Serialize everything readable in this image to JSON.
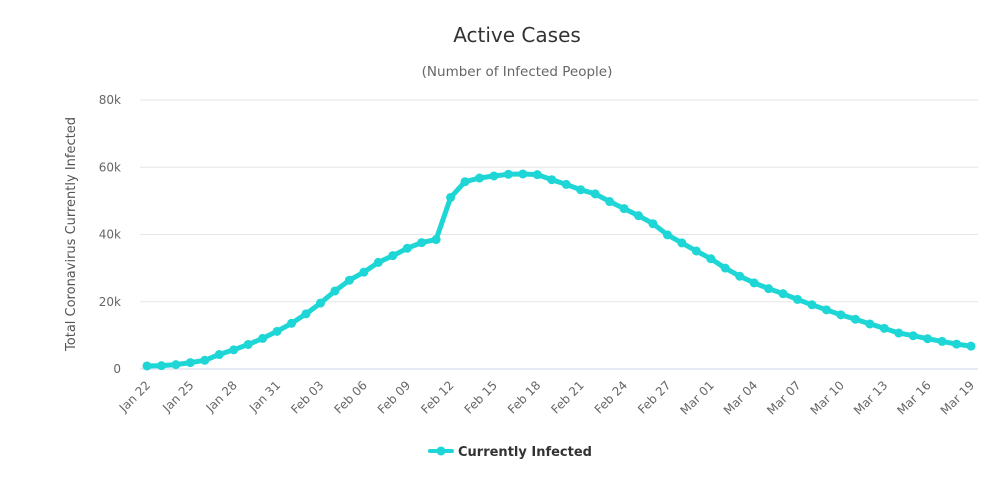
{
  "chart_data": {
    "type": "line",
    "title": "Active Cases",
    "subtitle": "(Number of Infected People)",
    "xlabel": "",
    "ylabel": "Total Coronavirus Currently Infected",
    "ylim": [
      0,
      80000
    ],
    "yticks": [
      0,
      20000,
      40000,
      60000,
      80000
    ],
    "ytick_labels": [
      "0",
      "20k",
      "40k",
      "60k",
      "80k"
    ],
    "grid": true,
    "legend_position": "bottom-center",
    "x": [
      "Jan 22",
      "Jan 23",
      "Jan 24",
      "Jan 25",
      "Jan 26",
      "Jan 27",
      "Jan 28",
      "Jan 29",
      "Jan 30",
      "Jan 31",
      "Feb 01",
      "Feb 02",
      "Feb 03",
      "Feb 04",
      "Feb 05",
      "Feb 06",
      "Feb 07",
      "Feb 08",
      "Feb 09",
      "Feb 10",
      "Feb 11",
      "Feb 12",
      "Feb 13",
      "Feb 14",
      "Feb 15",
      "Feb 16",
      "Feb 17",
      "Feb 18",
      "Feb 19",
      "Feb 20",
      "Feb 21",
      "Feb 22",
      "Feb 23",
      "Feb 24",
      "Feb 25",
      "Feb 26",
      "Feb 27",
      "Feb 28",
      "Feb 29",
      "Mar 01",
      "Mar 02",
      "Mar 03",
      "Mar 04",
      "Mar 05",
      "Mar 06",
      "Mar 07",
      "Mar 08",
      "Mar 09",
      "Mar 10",
      "Mar 11",
      "Mar 12",
      "Mar 13",
      "Mar 14",
      "Mar 15",
      "Mar 16",
      "Mar 17",
      "Mar 18",
      "Mar 19"
    ],
    "xtick_labels": [
      "Jan 22",
      "Jan 25",
      "Jan 28",
      "Jan 31",
      "Feb 03",
      "Feb 06",
      "Feb 09",
      "Feb 12",
      "Feb 15",
      "Feb 18",
      "Feb 21",
      "Feb 24",
      "Feb 27",
      "Mar 01",
      "Mar 04",
      "Mar 07",
      "Mar 10",
      "Mar 13",
      "Mar 16",
      "Mar 19"
    ],
    "series": [
      {
        "name": "Currently Infected",
        "color": "#1fd6d6",
        "values": [
          900,
          1000,
          1300,
          1900,
          2600,
          4300,
          5700,
          7300,
          9100,
          11200,
          13600,
          16400,
          19600,
          23200,
          26400,
          28800,
          31700,
          33700,
          35900,
          37600,
          38500,
          51000,
          55700,
          56800,
          57400,
          57900,
          58000,
          57800,
          56300,
          54900,
          53300,
          52100,
          49800,
          47700,
          45600,
          43200,
          39900,
          37500,
          35100,
          32800,
          30000,
          27600,
          25600,
          23900,
          22400,
          20700,
          19100,
          17600,
          16100,
          14800,
          13400,
          12100,
          10700,
          9900,
          9000,
          8200,
          7400,
          6800
        ]
      }
    ]
  },
  "colors": {
    "grid": "#e6e6e6",
    "axis": "#ccd6eb",
    "series": "#1fd6d6"
  }
}
